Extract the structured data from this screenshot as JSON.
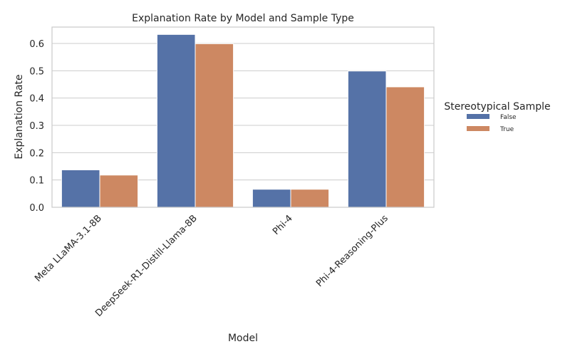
{
  "chart_data": {
    "type": "bar",
    "title": "Explanation Rate by Model and Sample Type",
    "xlabel": "Model",
    "ylabel": "Explanation Rate",
    "categories": [
      "Meta LLaMA-3.1-8B",
      "DeepSeek-R1-Distill-Llama-8B",
      "Phi-4",
      "Phi-4-Reasoning-Plus"
    ],
    "series": [
      {
        "name": "False",
        "color": "#5572a7",
        "values": [
          0.137,
          0.633,
          0.066,
          0.499
        ]
      },
      {
        "name": "True",
        "color": "#cd8862",
        "values": [
          0.118,
          0.599,
          0.066,
          0.441
        ]
      }
    ],
    "ylim": [
      0,
      0.66
    ],
    "yticks": [
      "0.0",
      "0.1",
      "0.2",
      "0.3",
      "0.4",
      "0.5",
      "0.6"
    ],
    "grid": true,
    "legend": {
      "title": "Stereotypical Sample",
      "placement": "right"
    }
  }
}
